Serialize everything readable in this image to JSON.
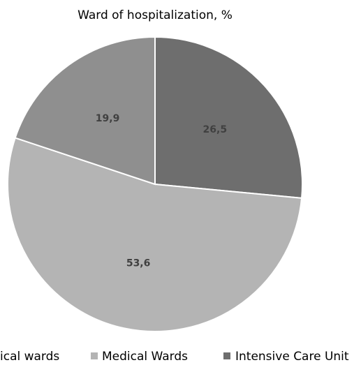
{
  "chart_data": {
    "type": "pie",
    "title": "Ward of hospitalization, %",
    "categories": [
      "ical wards",
      "Medical Wards",
      "Intensive Care Unit"
    ],
    "values": [
      19.9,
      53.6,
      26.5
    ],
    "value_labels": [
      "19,9",
      "53,6",
      "26,5"
    ],
    "colors": [
      "#8f8f8f",
      "#b4b4b4",
      "#6e6e6e"
    ],
    "legend": "bottom"
  }
}
